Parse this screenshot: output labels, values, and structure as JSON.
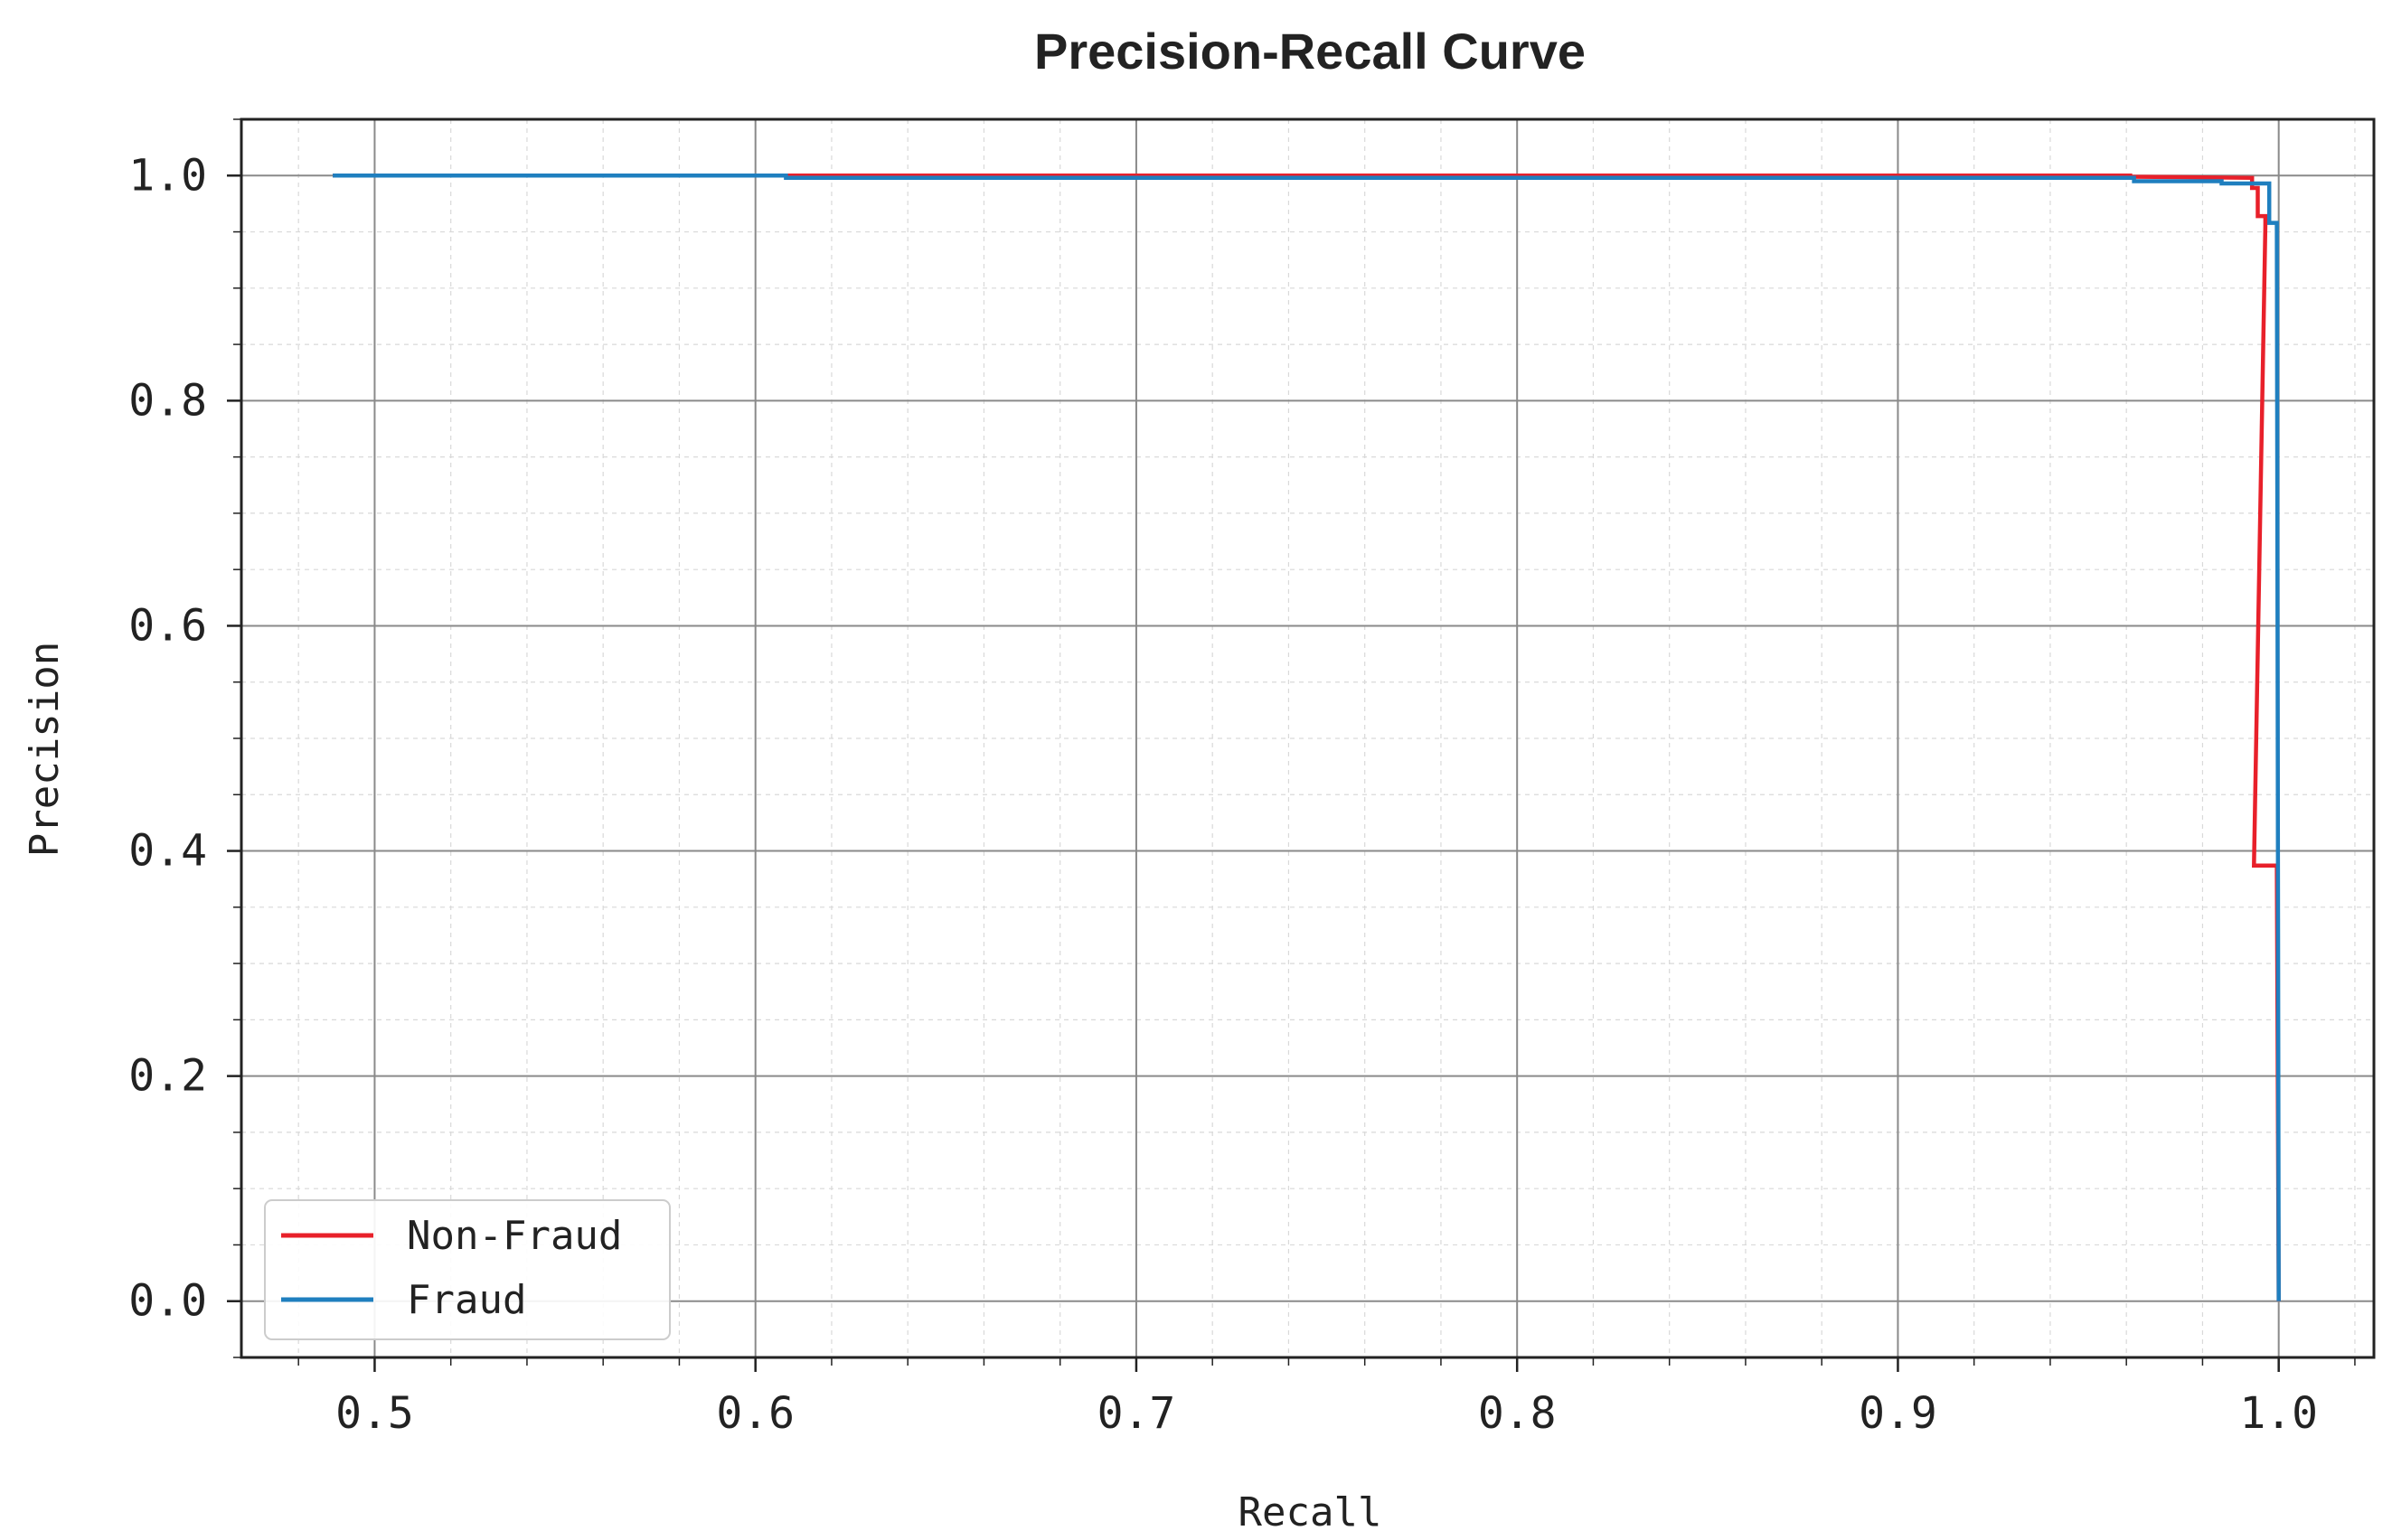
{
  "chart_data": {
    "type": "line",
    "title": "Precision-Recall Curve",
    "xlabel": "Recall",
    "ylabel": "Precision",
    "xlim": [
      0.465,
      1.025
    ],
    "ylim": [
      -0.05,
      1.05
    ],
    "xticks": [
      0.5,
      0.6,
      0.7,
      0.8,
      0.9,
      1.0
    ],
    "xtick_labels": [
      "0.5",
      "0.6",
      "0.7",
      "0.8",
      "0.9",
      "1.0"
    ],
    "yticks": [
      0.0,
      0.2,
      0.4,
      0.6,
      0.8,
      1.0
    ],
    "ytick_labels": [
      "0.0",
      "0.2",
      "0.4",
      "0.6",
      "0.8",
      "1.0"
    ],
    "grid": true,
    "legend_position": "bottom-left",
    "series": [
      {
        "name": "Non-Fraud",
        "color": "#e8202a",
        "points": [
          [
            0.489,
            1.0
          ],
          [
            0.961,
            1.0
          ],
          [
            0.961,
            0.999
          ],
          [
            0.993,
            0.998
          ],
          [
            0.993,
            0.989
          ],
          [
            0.9945,
            0.989
          ],
          [
            0.9945,
            0.964
          ],
          [
            0.9965,
            0.964
          ],
          [
            0.9965,
            0.955
          ],
          [
            0.9935,
            0.387
          ],
          [
            0.9995,
            0.387
          ],
          [
            1.0,
            0.0
          ]
        ]
      },
      {
        "name": "Fraud",
        "color": "#1f7fbf",
        "points": [
          [
            0.489,
            1.0
          ],
          [
            0.608,
            1.0
          ],
          [
            0.608,
            0.998
          ],
          [
            0.962,
            0.998
          ],
          [
            0.962,
            0.995
          ],
          [
            0.985,
            0.995
          ],
          [
            0.985,
            0.993
          ],
          [
            0.9975,
            0.993
          ],
          [
            0.9975,
            0.958
          ],
          [
            0.9995,
            0.958
          ],
          [
            1.0,
            0.0
          ]
        ]
      }
    ]
  }
}
